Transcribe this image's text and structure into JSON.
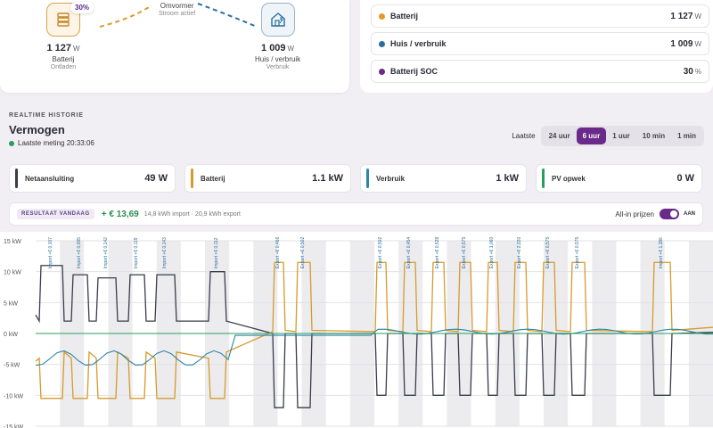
{
  "flow": {
    "battery": {
      "soc_badge": "30%",
      "value": "1 127",
      "unit": "W",
      "label": "Batterij",
      "status": "Ontladen",
      "icon": "battery-icon"
    },
    "inverter": {
      "label": "Omvormer",
      "status": "Stroom actief"
    },
    "house": {
      "value": "1 009",
      "unit": "W",
      "label": "Huis / verbruik",
      "status": "Verbruik",
      "icon": "house-icon"
    }
  },
  "summary_list": [
    {
      "label": "Batterij",
      "value": "1 127",
      "unit": "W",
      "color": "#e09a2c"
    },
    {
      "label": "Huis / verbruik",
      "value": "1 009",
      "unit": "W",
      "color": "#2b6f9e"
    },
    {
      "label": "Batterij SOC",
      "value": "30",
      "unit": "%",
      "color": "#6a2a8a"
    }
  ],
  "history": {
    "section_label": "REALTIME HISTORIE",
    "title": "Vermogen",
    "last_measurement": "Laatste meting 20:33:06",
    "range_label": "Laatste",
    "ranges": [
      "24 uur",
      "6 uur",
      "1 uur",
      "10 min",
      "1 min"
    ],
    "active_range": "6 uur"
  },
  "metrics": [
    {
      "label": "Netaansluiting",
      "value": "49 W",
      "color": "#3a3d4a"
    },
    {
      "label": "Batterij",
      "value": "1.1 kW",
      "color": "#d79a2a"
    },
    {
      "label": "Verbruik",
      "value": "1 kW",
      "color": "#2a86a8"
    },
    {
      "label": "PV opwek",
      "value": "0 W",
      "color": "#2a9d5c"
    }
  ],
  "result": {
    "badge": "RESULTAAT VANDAAG",
    "amount": "+ € 13,69",
    "detail": "14,8 kWh import · 20,9 kWh export",
    "toggle_label": "All-in prijzen",
    "toggle_state": "AAN"
  },
  "chart_data": {
    "type": "line",
    "ylabel": "",
    "yticks": [
      "15 kW",
      "10 kW",
      "5 kW",
      "0 kW",
      "-5 kW",
      "-10 kW",
      "-15 kW"
    ],
    "ylim": [
      -15,
      15
    ],
    "annotations": [
      "Import +€ 0,107",
      "Import +€ 0,095",
      "Import +€ 0,142",
      "Import +€ 0,119",
      "Import +€ 0,143",
      "Import +€ 0,112",
      "Export +€ 0,466",
      "Export +€ 0,502",
      "Export +€ 0,502",
      "Export +€ 0,454",
      "Export +€ 0,528",
      "Export +€ 0,575",
      "Export +€ 1,060",
      "Export +€ 2,220",
      "Export +€ 0,575",
      "Export +€ 0,575",
      "Import +€ 1,386"
    ],
    "series": [
      {
        "name": "Netaansluiting",
        "color": "#3a3d4a"
      },
      {
        "name": "Batterij",
        "color": "#d79a2a"
      },
      {
        "name": "Verbruik",
        "color": "#2a86a8"
      },
      {
        "name": "PV opwek",
        "color": "#2a9d5c"
      }
    ]
  }
}
